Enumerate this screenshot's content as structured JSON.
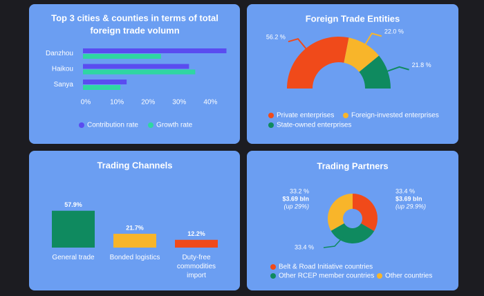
{
  "chart_data": [
    {
      "type": "hbar",
      "title": [
        "Top 3 cities & counties in terms of total",
        "foreign trade volumn"
      ],
      "categories": [
        "Danzhou",
        "Haikou",
        "Sanya"
      ],
      "series": [
        {
          "name": "Contribution rate",
          "color": "#5a4cf0",
          "values": [
            46,
            34,
            14
          ]
        },
        {
          "name": "Growth rate",
          "color": "#2fd6a2",
          "values": [
            25,
            36,
            12
          ]
        }
      ],
      "xlim": [
        0,
        47
      ],
      "xticks": [
        {
          "value": 0,
          "label": "0%"
        },
        {
          "value": 10,
          "label": "10%"
        },
        {
          "value": 20,
          "label": "20%"
        },
        {
          "value": 30,
          "label": "30%"
        },
        {
          "value": 40,
          "label": "40%"
        }
      ]
    },
    {
      "type": "semi-donut",
      "title": "Foreign Trade Entities",
      "categories": [
        "Private enterprises",
        "Foreign-invested enterprises",
        "State-owned enterprises"
      ],
      "values": [
        56.2,
        22.0,
        21.8
      ],
      "value_labels": [
        "56.2 %",
        "22.0 %",
        "21.8 %"
      ],
      "colors": [
        "#f04a1a",
        "#f8b52a",
        "#0f8a5f"
      ]
    },
    {
      "type": "bar",
      "title": "Trading Channels",
      "categories": [
        "General trade",
        "Bonded logistics",
        "Duty-free commodities import"
      ],
      "values": [
        57.9,
        21.7,
        12.2
      ],
      "value_labels": [
        "57.9%",
        "21.7%",
        "12.2%"
      ],
      "colors": [
        "#0f8a5f",
        "#f8b52a",
        "#f04a1a"
      ]
    },
    {
      "type": "donut",
      "title": "Trading Partners",
      "categories": [
        "Belt & Road Initiative countries",
        "Other RCEP member countries",
        "Other countries"
      ],
      "values": [
        33.4,
        33.4,
        33.2
      ],
      "value_labels": [
        "33.4 %",
        "33.4 %",
        "33.2 %"
      ],
      "details": [
        [
          "$3.69 bln",
          "(up 29.9%)"
        ],
        [],
        [
          "$3.69 bln",
          "(up 29%)"
        ]
      ],
      "colors": [
        "#f04a1a",
        "#0f8a5f",
        "#f8b52a"
      ]
    }
  ]
}
